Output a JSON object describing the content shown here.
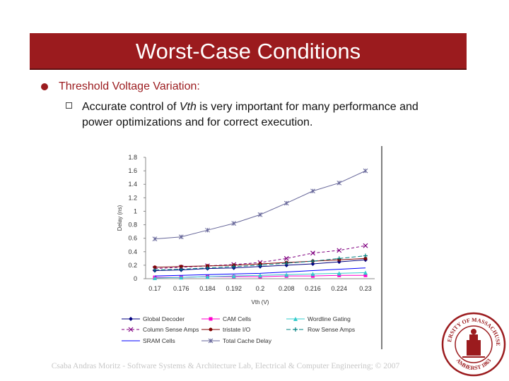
{
  "slide": {
    "title": "Worst-Case Conditions",
    "bullet_main": "Threshold Voltage Variation:",
    "bullet_sub_prefix": "Accurate control of ",
    "bullet_sub_italic": "Vth",
    "bullet_sub_suffix": " is very important for many performance and power optimizations and for correct execution.",
    "footer": "Csaba Andras Moritz - Software Systems & Architecture Lab, Electrical & Computer Engineering; © 2007",
    "seal_top_text": "UNIVERSITY OF MASSACHUSETTS",
    "seal_bottom_text": "AMHERST 1863",
    "colors": {
      "title_bar": "#9b1b1e",
      "bullet": "#9b1b1e"
    }
  },
  "chart_data": {
    "type": "line",
    "xlabel": "Vth (V)",
    "ylabel": "Delay (ns)",
    "x": [
      "0.17",
      "0.176",
      "0.184",
      "0.192",
      "0.2",
      "0.208",
      "0.216",
      "0.224",
      "0.23"
    ],
    "ylim": [
      0,
      1.8
    ],
    "yticks": [
      "0",
      "0.2",
      "0.4",
      "0.6",
      "0.8",
      "1",
      "1.2",
      "1.4",
      "1.6",
      "1.8"
    ],
    "legend_position": "bottom",
    "series": [
      {
        "name": "Global Decoder",
        "color": "#000080",
        "marker": "diamond",
        "dash": "",
        "values": [
          0.12,
          0.13,
          0.15,
          0.16,
          0.18,
          0.2,
          0.22,
          0.25,
          0.28
        ]
      },
      {
        "name": "CAM Cells",
        "color": "#ff00cc",
        "marker": "square",
        "dash": "",
        "values": [
          0.02,
          0.02,
          0.03,
          0.03,
          0.03,
          0.04,
          0.04,
          0.05,
          0.05
        ]
      },
      {
        "name": "Wordline Gating",
        "color": "#33cccc",
        "marker": "triangle",
        "dash": "",
        "values": [
          0.01,
          0.02,
          0.03,
          0.04,
          0.05,
          0.06,
          0.07,
          0.08,
          0.09
        ]
      },
      {
        "name": "Column Sense Amps",
        "color": "#800080",
        "marker": "x",
        "dash": "4,3",
        "values": [
          0.15,
          0.17,
          0.19,
          0.21,
          0.24,
          0.3,
          0.38,
          0.42,
          0.49
        ]
      },
      {
        "name": "tristate I/O",
        "color": "#800000",
        "marker": "circle",
        "dash": "",
        "values": [
          0.17,
          0.18,
          0.19,
          0.2,
          0.22,
          0.24,
          0.26,
          0.28,
          0.3
        ]
      },
      {
        "name": "Row Sense Amps",
        "color": "#008080",
        "marker": "plus",
        "dash": "6,3",
        "values": [
          0.13,
          0.14,
          0.16,
          0.18,
          0.2,
          0.23,
          0.26,
          0.3,
          0.34
        ]
      },
      {
        "name": "SRAM Cells",
        "color": "#0000ff",
        "marker": "none",
        "dash": "",
        "values": [
          0.04,
          0.05,
          0.06,
          0.07,
          0.08,
          0.1,
          0.12,
          0.14,
          0.16
        ]
      },
      {
        "name": "Total Cache Delay",
        "color": "#666699",
        "marker": "star",
        "dash": "",
        "values": [
          0.59,
          0.62,
          0.72,
          0.82,
          0.95,
          1.12,
          1.3,
          1.42,
          1.6
        ]
      }
    ]
  }
}
